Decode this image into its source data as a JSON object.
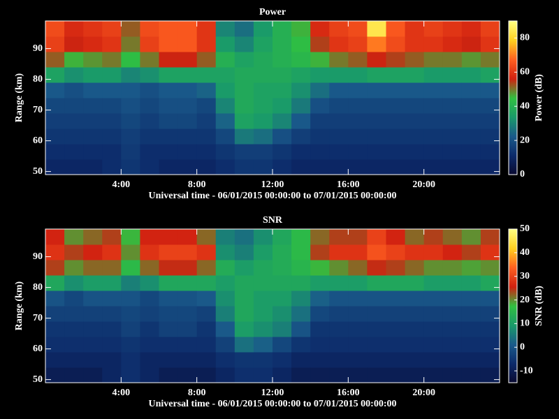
{
  "chart_data": [
    {
      "type": "heatmap",
      "title": "Power",
      "x_label": "Universal time - 06/01/2015 00:00:00 to 07/01/2015 00:00:00",
      "y_label": "Range (km)",
      "colorbar_label": "Power (dB)",
      "xlim": [
        0,
        24
      ],
      "xticks": [
        {
          "value": 4,
          "label": "4:00"
        },
        {
          "value": 8,
          "label": "8:00"
        },
        {
          "value": 12,
          "label": "12:00"
        },
        {
          "value": 16,
          "label": "16:00"
        },
        {
          "value": 20,
          "label": "20:00"
        }
      ],
      "ylim": [
        49,
        99
      ],
      "yticks": [
        50,
        60,
        70,
        80,
        90
      ],
      "xbins": [
        0,
        1,
        2,
        3,
        4,
        5,
        6,
        7,
        8,
        9,
        10,
        11,
        12,
        13,
        14,
        15,
        16,
        17,
        18,
        19,
        20,
        21,
        22,
        23,
        24
      ],
      "ybins": [
        49,
        54,
        59,
        64,
        69,
        74,
        79,
        84,
        89,
        94,
        99
      ],
      "zlim": [
        0,
        90
      ],
      "zticks": [
        0,
        20,
        40,
        60,
        80
      ],
      "colors": [
        "#0a0a30",
        "#0c2a6a",
        "#1a5a8a",
        "#1a9a6a",
        "#30c040",
        "#d02010",
        "#ff6020",
        "#ffd020",
        "#ffff80"
      ],
      "z": [
        [
          10,
          10,
          10,
          12,
          14,
          12,
          10,
          10,
          10,
          12,
          14,
          14,
          12,
          10,
          10,
          10,
          10,
          10,
          10,
          10,
          10,
          10,
          10,
          10
        ],
        [
          12,
          12,
          12,
          12,
          15,
          12,
          12,
          12,
          12,
          14,
          16,
          16,
          14,
          12,
          12,
          12,
          12,
          12,
          12,
          12,
          12,
          12,
          12,
          12
        ],
        [
          14,
          14,
          14,
          14,
          16,
          14,
          14,
          14,
          14,
          18,
          28,
          26,
          20,
          16,
          14,
          14,
          14,
          14,
          14,
          14,
          14,
          14,
          14,
          14
        ],
        [
          16,
          16,
          16,
          16,
          18,
          16,
          18,
          18,
          16,
          24,
          36,
          34,
          30,
          22,
          16,
          16,
          16,
          16,
          16,
          16,
          16,
          16,
          16,
          16
        ],
        [
          18,
          18,
          18,
          18,
          20,
          18,
          20,
          20,
          18,
          30,
          38,
          36,
          34,
          28,
          20,
          18,
          18,
          18,
          18,
          18,
          18,
          18,
          18,
          18
        ],
        [
          22,
          20,
          22,
          22,
          22,
          20,
          22,
          22,
          24,
          34,
          38,
          36,
          36,
          32,
          26,
          22,
          22,
          22,
          22,
          22,
          22,
          22,
          22,
          22
        ],
        [
          36,
          32,
          34,
          34,
          30,
          32,
          36,
          36,
          36,
          36,
          38,
          38,
          38,
          36,
          34,
          34,
          34,
          36,
          36,
          36,
          34,
          34,
          34,
          36
        ],
        [
          52,
          46,
          48,
          50,
          44,
          50,
          56,
          56,
          52,
          40,
          36,
          38,
          40,
          42,
          46,
          50,
          52,
          56,
          54,
          52,
          50,
          50,
          48,
          50
        ],
        [
          62,
          56,
          58,
          60,
          50,
          62,
          66,
          66,
          60,
          34,
          30,
          36,
          40,
          44,
          54,
          60,
          62,
          70,
          64,
          60,
          60,
          58,
          56,
          60
        ],
        [
          64,
          58,
          60,
          62,
          52,
          64,
          66,
          66,
          60,
          30,
          26,
          34,
          40,
          46,
          58,
          62,
          64,
          84,
          66,
          60,
          62,
          60,
          58,
          62
        ]
      ]
    },
    {
      "type": "heatmap",
      "title": "SNR",
      "x_label": "Universal time - 06/01/2015 00:00:00 to 07/01/2015 00:00:00",
      "y_label": "Range (km)",
      "colorbar_label": "SNR (dB)",
      "xlim": [
        0,
        24
      ],
      "xticks": [
        {
          "value": 4,
          "label": "4:00"
        },
        {
          "value": 8,
          "label": "8:00"
        },
        {
          "value": 12,
          "label": "12:00"
        },
        {
          "value": 16,
          "label": "16:00"
        },
        {
          "value": 20,
          "label": "20:00"
        }
      ],
      "ylim": [
        49,
        99
      ],
      "yticks": [
        50,
        60,
        70,
        80,
        90
      ],
      "xbins": [
        0,
        1,
        2,
        3,
        4,
        5,
        6,
        7,
        8,
        9,
        10,
        11,
        12,
        13,
        14,
        15,
        16,
        17,
        18,
        19,
        20,
        21,
        22,
        23,
        24
      ],
      "ybins": [
        49,
        54,
        59,
        64,
        69,
        74,
        79,
        84,
        89,
        94,
        99
      ],
      "zlim": [
        -15,
        50
      ],
      "zticks": [
        -10,
        0,
        10,
        20,
        30,
        40,
        50
      ],
      "colors": [
        "#0a0a30",
        "#0c2a6a",
        "#1a5a8a",
        "#1a9a6a",
        "#30c040",
        "#d02010",
        "#ff6020",
        "#ffd020",
        "#ffff80"
      ],
      "z": [
        [
          -10,
          -10,
          -10,
          -8,
          -6,
          -8,
          -10,
          -10,
          -10,
          -8,
          -6,
          -6,
          -8,
          -10,
          -10,
          -10,
          -10,
          -10,
          -10,
          -10,
          -10,
          -10,
          -10,
          -10
        ],
        [
          -8,
          -8,
          -8,
          -8,
          -6,
          -8,
          -8,
          -8,
          -8,
          -6,
          -5,
          -5,
          -6,
          -8,
          -8,
          -8,
          -8,
          -8,
          -8,
          -8,
          -8,
          -8,
          -8,
          -8
        ],
        [
          -6,
          -6,
          -6,
          -6,
          -5,
          -6,
          -6,
          -6,
          -6,
          -3,
          4,
          2,
          -2,
          -5,
          -6,
          -6,
          -6,
          -6,
          -6,
          -6,
          -6,
          -6,
          -6,
          -6
        ],
        [
          -5,
          -5,
          -5,
          -5,
          -3,
          -5,
          -3,
          -3,
          -5,
          1,
          10,
          8,
          6,
          0,
          -5,
          -5,
          -5,
          -5,
          -5,
          -5,
          -5,
          -5,
          -5,
          -5
        ],
        [
          -3,
          -3,
          -3,
          -3,
          -2,
          -3,
          -2,
          -2,
          -3,
          6,
          12,
          10,
          8,
          4,
          -2,
          -3,
          -3,
          -3,
          -3,
          -3,
          -3,
          -3,
          -3,
          -3
        ],
        [
          0,
          -2,
          0,
          0,
          0,
          -2,
          0,
          0,
          1,
          8,
          12,
          10,
          10,
          7,
          2,
          0,
          0,
          0,
          0,
          0,
          0,
          0,
          0,
          0
        ],
        [
          12,
          8,
          10,
          10,
          6,
          8,
          12,
          12,
          12,
          10,
          12,
          12,
          12,
          12,
          10,
          10,
          10,
          12,
          12,
          12,
          10,
          10,
          10,
          12
        ],
        [
          24,
          20,
          22,
          22,
          16,
          22,
          25,
          25,
          22,
          13,
          10,
          12,
          13,
          15,
          18,
          20,
          22,
          25,
          24,
          22,
          20,
          20,
          19,
          20
        ],
        [
          28,
          24,
          26,
          28,
          20,
          28,
          30,
          30,
          28,
          8,
          6,
          10,
          13,
          16,
          24,
          28,
          28,
          32,
          30,
          28,
          28,
          26,
          24,
          28
        ],
        [
          26,
          20,
          22,
          24,
          18,
          26,
          26,
          26,
          22,
          6,
          4,
          8,
          12,
          16,
          22,
          24,
          24,
          30,
          26,
          22,
          24,
          22,
          20,
          24
        ]
      ]
    }
  ]
}
